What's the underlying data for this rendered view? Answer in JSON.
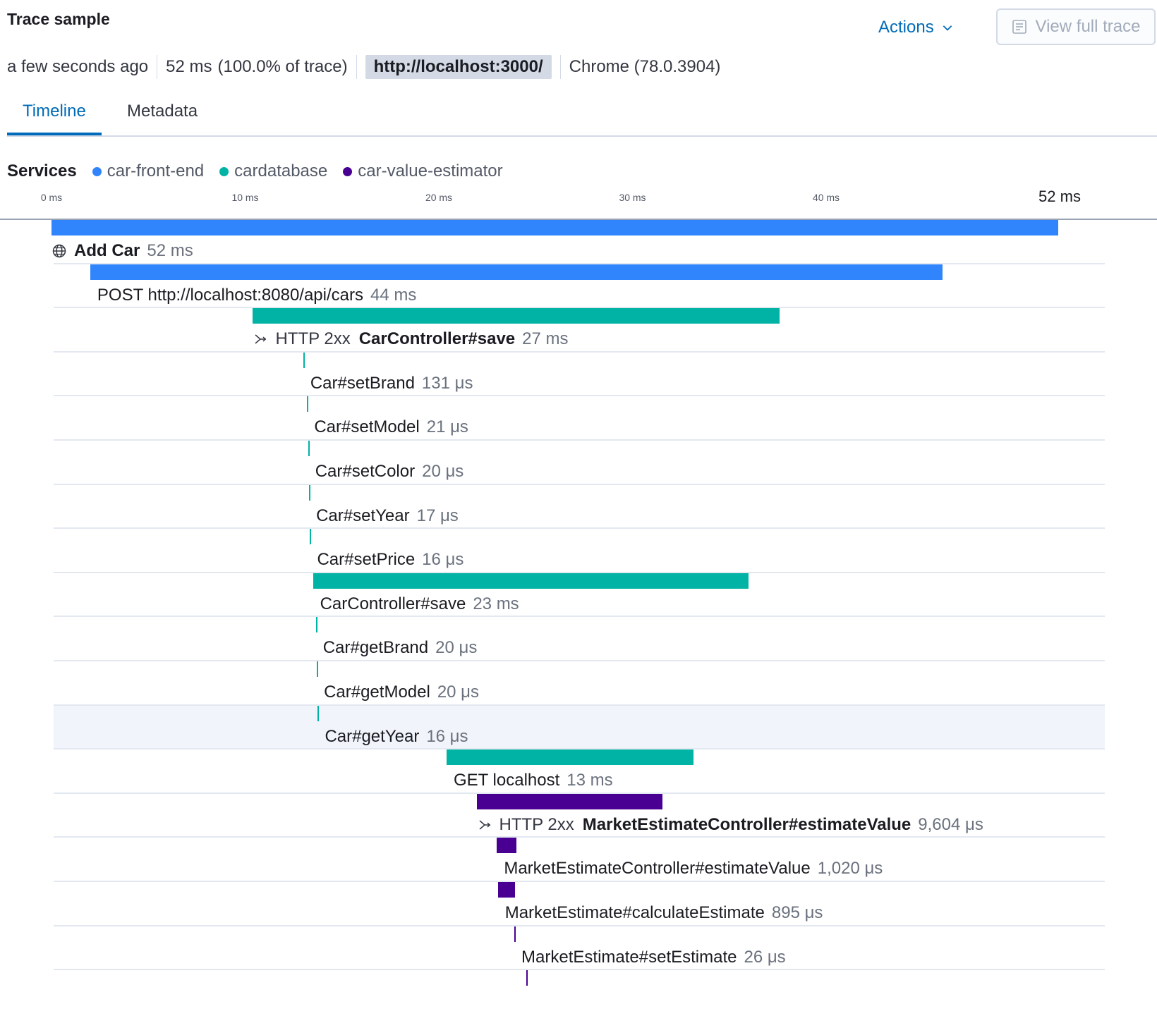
{
  "header": {
    "title": "Trace sample",
    "actions_label": "Actions",
    "view_full_trace_label": "View full trace"
  },
  "summary": {
    "time_ago": "a few seconds ago",
    "duration": "52 ms",
    "percent_of_trace": "(100.0% of trace)",
    "url": "http://localhost:3000/",
    "user_agent": "Chrome (78.0.3904)"
  },
  "tabs": [
    {
      "label": "Timeline",
      "active": true
    },
    {
      "label": "Metadata",
      "active": false
    }
  ],
  "services": {
    "label": "Services",
    "items": [
      {
        "name": "car-front-end",
        "color": "#3185fc"
      },
      {
        "name": "cardatabase",
        "color": "#00b3a4"
      },
      {
        "name": "car-value-estimator",
        "color": "#490092"
      }
    ]
  },
  "axis": {
    "ticks": [
      "0 ms",
      "10 ms",
      "20 ms",
      "30 ms",
      "40 ms"
    ],
    "end_label": "52 ms",
    "total_ms": 52
  },
  "spans": [
    {
      "name": "Add Car",
      "duration": "52 ms",
      "start_ms": 0,
      "duration_ms": 52,
      "service": 0,
      "icon": "globe-icon",
      "bold": true
    },
    {
      "name": "POST http://localhost:8080/api/cars",
      "duration": "44 ms",
      "start_ms": 2,
      "duration_ms": 44,
      "service": 0
    },
    {
      "name": "CarController#save",
      "duration": "27 ms",
      "prefix": "HTTP 2xx",
      "start_ms": 10.4,
      "duration_ms": 27.2,
      "service": 1,
      "icon": "merge-icon",
      "bold": true
    },
    {
      "name": "Car#setBrand",
      "duration": "131 μs",
      "start_ms": 13.0,
      "duration_ms": 0.131,
      "service": 1
    },
    {
      "name": "Car#setModel",
      "duration": "21 μs",
      "start_ms": 13.2,
      "duration_ms": 0.021,
      "service": 1
    },
    {
      "name": "Car#setColor",
      "duration": "20 μs",
      "start_ms": 13.25,
      "duration_ms": 0.02,
      "service": 1
    },
    {
      "name": "Car#setYear",
      "duration": "17 μs",
      "start_ms": 13.3,
      "duration_ms": 0.017,
      "service": 1
    },
    {
      "name": "Car#setPrice",
      "duration": "16 μs",
      "start_ms": 13.35,
      "duration_ms": 0.016,
      "service": 1
    },
    {
      "name": "CarController#save",
      "duration": "23 ms",
      "start_ms": 13.5,
      "duration_ms": 22.5,
      "service": 1
    },
    {
      "name": "Car#getBrand",
      "duration": "20 μs",
      "start_ms": 13.65,
      "duration_ms": 0.02,
      "service": 1
    },
    {
      "name": "Car#getModel",
      "duration": "20 μs",
      "start_ms": 13.7,
      "duration_ms": 0.02,
      "service": 1
    },
    {
      "name": "Car#getYear",
      "duration": "16 μs",
      "start_ms": 13.75,
      "duration_ms": 0.016,
      "service": 1,
      "highlighted": true
    },
    {
      "name": "GET localhost",
      "duration": "13 ms",
      "start_ms": 20.4,
      "duration_ms": 12.75,
      "service": 1
    },
    {
      "name": "MarketEstimateController#estimateValue",
      "duration": "9,604 μs",
      "prefix": "HTTP 2xx",
      "start_ms": 21.95,
      "duration_ms": 9.604,
      "service": 2,
      "icon": "merge-icon",
      "bold": true
    },
    {
      "name": "MarketEstimateController#estimateValue",
      "duration": "1,020 μs",
      "start_ms": 23.0,
      "duration_ms": 1.02,
      "service": 2
    },
    {
      "name": "MarketEstimate#calculateEstimate",
      "duration": "895 μs",
      "start_ms": 23.05,
      "duration_ms": 0.895,
      "service": 2
    },
    {
      "name": "MarketEstimate#setEstimate",
      "duration": "26 μs",
      "start_ms": 23.9,
      "duration_ms": 0.026,
      "service": 2
    },
    {
      "name": "",
      "duration": "",
      "start_ms": 24.5,
      "duration_ms": 0.026,
      "service": 2
    }
  ]
}
